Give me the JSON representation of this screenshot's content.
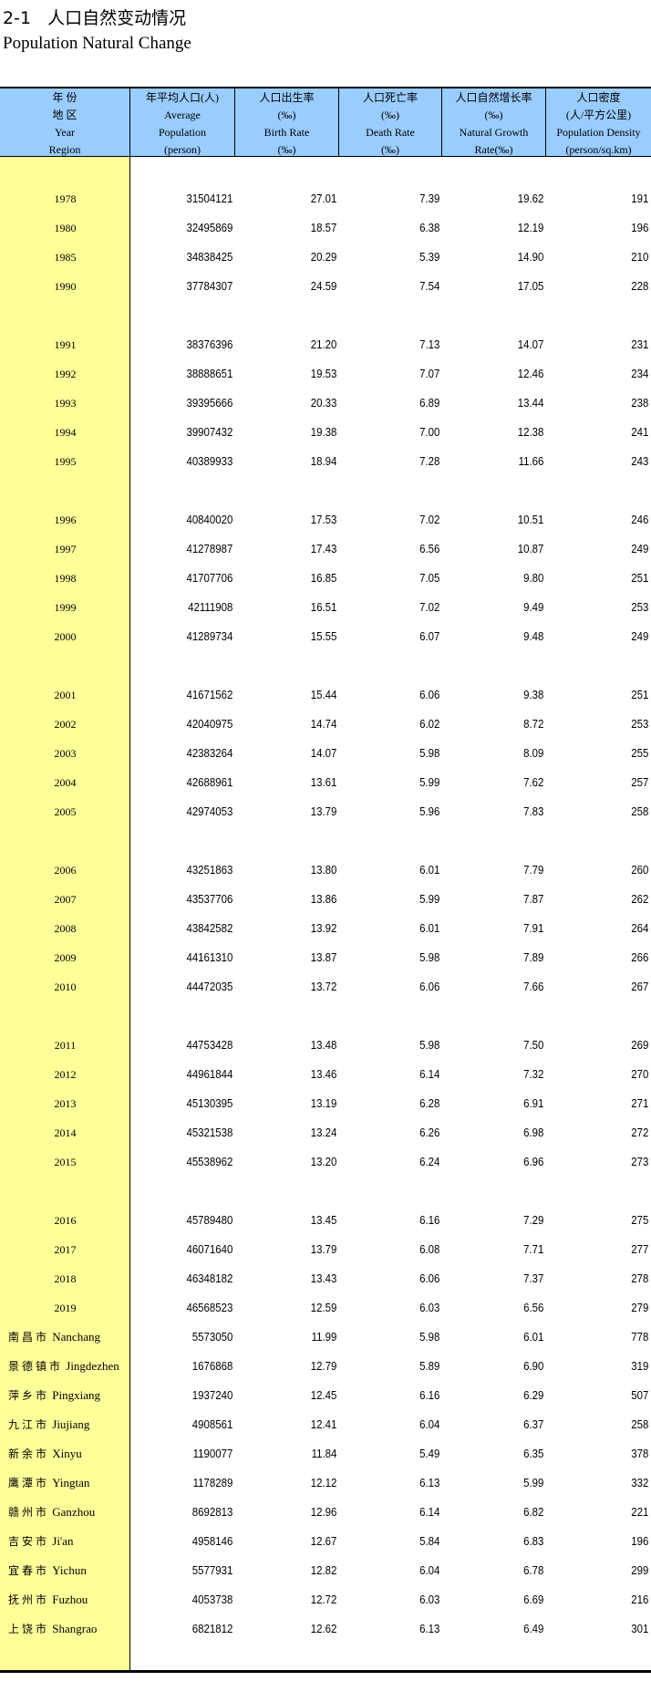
{
  "title": {
    "cn": "2-1   人口自然变动情况",
    "en": "Population Natural Change"
  },
  "colors": {
    "header_bg": "#99CCFF",
    "region_bg": "#FFFF99"
  },
  "columns": [
    {
      "lines": [
        "年 份",
        "地 区",
        "Year",
        "Region"
      ]
    },
    {
      "lines": [
        "年平均人口(人)",
        "Average",
        "Population",
        "(person)"
      ]
    },
    {
      "lines": [
        "人口出生率",
        "(‰)",
        "Birth Rate",
        "(‰)"
      ]
    },
    {
      "lines": [
        "人口死亡率",
        "(‰)",
        "Death Rate",
        "(‰)"
      ]
    },
    {
      "lines": [
        "人口自然增长率",
        "(‰)",
        "Natural Growth",
        "Rate(‰)"
      ]
    },
    {
      "lines": [
        "人口密度",
        "(人/平方公里)",
        "Population Density",
        "(person/sq.km)"
      ]
    }
  ],
  "year_groups": [
    [
      [
        "1978",
        "31504121",
        "27.01",
        "7.39",
        "19.62",
        "191"
      ],
      [
        "1980",
        "32495869",
        "18.57",
        "6.38",
        "12.19",
        "196"
      ],
      [
        "1985",
        "34838425",
        "20.29",
        "5.39",
        "14.90",
        "210"
      ],
      [
        "1990",
        "37784307",
        "24.59",
        "7.54",
        "17.05",
        "228"
      ]
    ],
    [
      [
        "1991",
        "38376396",
        "21.20",
        "7.13",
        "14.07",
        "231"
      ],
      [
        "1992",
        "38888651",
        "19.53",
        "7.07",
        "12.46",
        "234"
      ],
      [
        "1993",
        "39395666",
        "20.33",
        "6.89",
        "13.44",
        "238"
      ],
      [
        "1994",
        "39907432",
        "19.38",
        "7.00",
        "12.38",
        "241"
      ],
      [
        "1995",
        "40389933",
        "18.94",
        "7.28",
        "11.66",
        "243"
      ]
    ],
    [
      [
        "1996",
        "40840020",
        "17.53",
        "7.02",
        "10.51",
        "246"
      ],
      [
        "1997",
        "41278987",
        "17.43",
        "6.56",
        "10.87",
        "249"
      ],
      [
        "1998",
        "41707706",
        "16.85",
        "7.05",
        "9.80",
        "251"
      ],
      [
        "1999",
        "42111908",
        "16.51",
        "7.02",
        "9.49",
        "253"
      ],
      [
        "2000",
        "41289734",
        "15.55",
        "6.07",
        "9.48",
        "249"
      ]
    ],
    [
      [
        "2001",
        "41671562",
        "15.44",
        "6.06",
        "9.38",
        "251"
      ],
      [
        "2002",
        "42040975",
        "14.74",
        "6.02",
        "8.72",
        "253"
      ],
      [
        "2003",
        "42383264",
        "14.07",
        "5.98",
        "8.09",
        "255"
      ],
      [
        "2004",
        "42688961",
        "13.61",
        "5.99",
        "7.62",
        "257"
      ],
      [
        "2005",
        "42974053",
        "13.79",
        "5.96",
        "7.83",
        "258"
      ]
    ],
    [
      [
        "2006",
        "43251863",
        "13.80",
        "6.01",
        "7.79",
        "260"
      ],
      [
        "2007",
        "43537706",
        "13.86",
        "5.99",
        "7.87",
        "262"
      ],
      [
        "2008",
        "43842582",
        "13.92",
        "6.01",
        "7.91",
        "264"
      ],
      [
        "2009",
        "44161310",
        "13.87",
        "5.98",
        "7.89",
        "266"
      ],
      [
        "2010",
        "44472035",
        "13.72",
        "6.06",
        "7.66",
        "267"
      ]
    ],
    [
      [
        "2011",
        "44753428",
        "13.48",
        "5.98",
        "7.50",
        "269"
      ],
      [
        "2012",
        "44961844",
        "13.46",
        "6.14",
        "7.32",
        "270"
      ],
      [
        "2013",
        "45130395",
        "13.19",
        "6.28",
        "6.91",
        "271"
      ],
      [
        "2014",
        "45321538",
        "13.24",
        "6.26",
        "6.98",
        "272"
      ],
      [
        "2015",
        "45538962",
        "13.20",
        "6.24",
        "6.96",
        "273"
      ]
    ],
    [
      [
        "2016",
        "45789480",
        "13.45",
        "6.16",
        "7.29",
        "275"
      ],
      [
        "2017",
        "46071640",
        "13.79",
        "6.08",
        "7.71",
        "277"
      ],
      [
        "2018",
        "46348182",
        "13.43",
        "6.06",
        "7.37",
        "278"
      ],
      [
        "2019",
        "46568523",
        "12.59",
        "6.03",
        "6.56",
        "279"
      ]
    ]
  ],
  "cities": [
    {
      "cn": "南昌市",
      "en": "Nanchang",
      "values": [
        "5573050",
        "11.99",
        "5.98",
        "6.01",
        "778"
      ]
    },
    {
      "cn": "景德镇市",
      "en": "Jingdezhen",
      "values": [
        "1676868",
        "12.79",
        "5.89",
        "6.90",
        "319"
      ]
    },
    {
      "cn": "萍乡市",
      "en": "Pingxiang",
      "values": [
        "1937240",
        "12.45",
        "6.16",
        "6.29",
        "507"
      ]
    },
    {
      "cn": "九江市",
      "en": "Jiujiang",
      "values": [
        "4908561",
        "12.41",
        "6.04",
        "6.37",
        "258"
      ]
    },
    {
      "cn": "新余市",
      "en": "Xinyu",
      "values": [
        "1190077",
        "11.84",
        "5.49",
        "6.35",
        "378"
      ]
    },
    {
      "cn": "鹰潭市",
      "en": "Yingtan",
      "values": [
        "1178289",
        "12.12",
        "6.13",
        "5.99",
        "332"
      ]
    },
    {
      "cn": "赣州市",
      "en": "Ganzhou",
      "values": [
        "8692813",
        "12.96",
        "6.14",
        "6.82",
        "221"
      ]
    },
    {
      "cn": "吉安市",
      "en": "Ji'an",
      "values": [
        "4958146",
        "12.67",
        "5.84",
        "6.83",
        "196"
      ]
    },
    {
      "cn": "宜春市",
      "en": "Yichun",
      "values": [
        "5577931",
        "12.82",
        "6.04",
        "6.78",
        "299"
      ]
    },
    {
      "cn": "抚州市",
      "en": "Fuzhou",
      "values": [
        "4053738",
        "12.72",
        "6.03",
        "6.69",
        "216"
      ]
    },
    {
      "cn": "上饶市",
      "en": "Shangrao",
      "values": [
        "6821812",
        "12.62",
        "6.13",
        "6.49",
        "301"
      ]
    }
  ]
}
